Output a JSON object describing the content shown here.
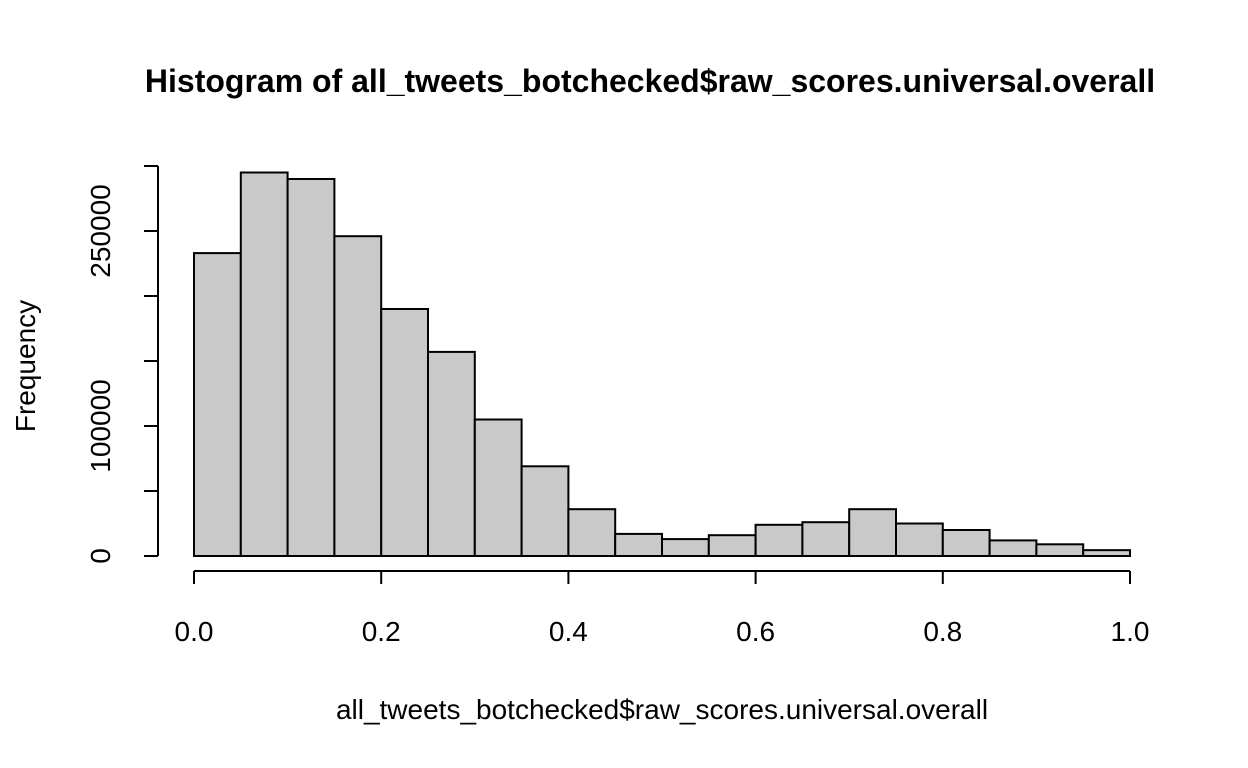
{
  "chart_data": {
    "type": "bar",
    "title": "Histogram of all_tweets_botchecked$raw_scores.universal.overall",
    "xlabel": "all_tweets_botchecked$raw_scores.universal.overall",
    "ylabel": "Frequency",
    "bin_width": 0.05,
    "bin_starts": [
      0.0,
      0.05,
      0.1,
      0.15,
      0.2,
      0.25,
      0.3,
      0.35,
      0.4,
      0.45,
      0.5,
      0.55,
      0.6,
      0.65,
      0.7,
      0.75,
      0.8,
      0.85,
      0.9,
      0.95
    ],
    "values": [
      233000,
      295000,
      290000,
      246000,
      190000,
      157000,
      105000,
      69000,
      36000,
      17000,
      13000,
      16000,
      24000,
      26000,
      36000,
      25000,
      20000,
      12000,
      9000,
      4500
    ],
    "xlim": [
      0.0,
      1.0
    ],
    "ylim": [
      0,
      300000
    ],
    "x_ticks": [
      0.0,
      0.2,
      0.4,
      0.6,
      0.8,
      1.0
    ],
    "x_tick_labels": [
      "0.0",
      "0.2",
      "0.4",
      "0.6",
      "0.8",
      "1.0"
    ],
    "y_ticks": [
      0,
      50000,
      100000,
      150000,
      200000,
      250000,
      300000
    ],
    "y_tick_labels": [
      "0",
      "",
      "100000",
      "",
      "",
      "250000",
      ""
    ],
    "grid": false
  }
}
